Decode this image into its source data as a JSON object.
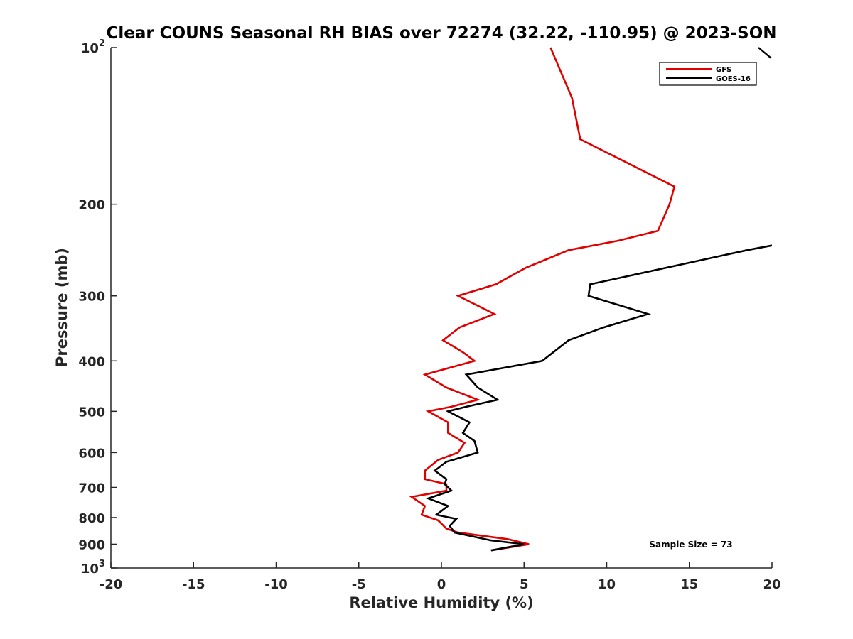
{
  "chart_data": {
    "type": "line",
    "title": "Clear COUNS Seasonal RH BIAS over 72274 (32.22, -110.95) @ 2023-SON",
    "xlabel": "Relative Humidity (%)",
    "ylabel": "Pressure (mb)",
    "xlim": [
      -20,
      20
    ],
    "ylim": [
      100,
      1000
    ],
    "y_scale": "log",
    "y_reversed": true,
    "grid": false,
    "legend_position": "top-right",
    "x_ticks": [
      "-20",
      "-15",
      "-10",
      "-5",
      "0",
      "5",
      "10",
      "15",
      "20"
    ],
    "y_ticks": [
      {
        "value": 100,
        "base": "10",
        "exp": "2"
      },
      {
        "value": 200,
        "base": "200",
        "exp": ""
      },
      {
        "value": 300,
        "base": "300",
        "exp": ""
      },
      {
        "value": 400,
        "base": "400",
        "exp": ""
      },
      {
        "value": 500,
        "base": "500",
        "exp": ""
      },
      {
        "value": 600,
        "base": "600",
        "exp": ""
      },
      {
        "value": 700,
        "base": "700",
        "exp": ""
      },
      {
        "value": 800,
        "base": "800",
        "exp": ""
      },
      {
        "value": 900,
        "base": "900",
        "exp": ""
      },
      {
        "value": 1000,
        "base": "10",
        "exp": "3"
      }
    ],
    "series": [
      {
        "name": "GFS",
        "color": "#e00000",
        "points": [
          {
            "x": 6.6,
            "y": 100
          },
          {
            "x": 7.9,
            "y": 125
          },
          {
            "x": 8.4,
            "y": 150
          },
          {
            "x": 14.1,
            "y": 185
          },
          {
            "x": 13.8,
            "y": 200
          },
          {
            "x": 13.1,
            "y": 225
          },
          {
            "x": 10.7,
            "y": 235
          },
          {
            "x": 7.7,
            "y": 245
          },
          {
            "x": 5.1,
            "y": 265
          },
          {
            "x": 3.3,
            "y": 285
          },
          {
            "x": 1.0,
            "y": 300
          },
          {
            "x": 3.2,
            "y": 325
          },
          {
            "x": 1.1,
            "y": 345
          },
          {
            "x": 0.1,
            "y": 365
          },
          {
            "x": 1.3,
            "y": 385
          },
          {
            "x": 2.0,
            "y": 400
          },
          {
            "x": -1.0,
            "y": 425
          },
          {
            "x": 0.3,
            "y": 450
          },
          {
            "x": 2.2,
            "y": 475
          },
          {
            "x": 0.6,
            "y": 490
          },
          {
            "x": -0.8,
            "y": 500
          },
          {
            "x": 0.4,
            "y": 525
          },
          {
            "x": 0.4,
            "y": 550
          },
          {
            "x": 1.4,
            "y": 575
          },
          {
            "x": 1.0,
            "y": 600
          },
          {
            "x": -0.2,
            "y": 620
          },
          {
            "x": -1.0,
            "y": 650
          },
          {
            "x": -1.0,
            "y": 675
          },
          {
            "x": 0.3,
            "y": 690
          },
          {
            "x": 0.3,
            "y": 710
          },
          {
            "x": -1.8,
            "y": 730
          },
          {
            "x": -1.0,
            "y": 760
          },
          {
            "x": -1.2,
            "y": 790
          },
          {
            "x": -0.2,
            "y": 810
          },
          {
            "x": 0.3,
            "y": 840
          },
          {
            "x": 1.0,
            "y": 855
          },
          {
            "x": 4.0,
            "y": 880
          },
          {
            "x": 5.3,
            "y": 900
          },
          {
            "x": 3.0,
            "y": 925
          }
        ]
      },
      {
        "name": "GOES-16",
        "color": "#000000",
        "points": [
          {
            "x": 20.0,
            "y": 240
          },
          {
            "x": 18.5,
            "y": 245
          },
          {
            "x": 9.0,
            "y": 285
          },
          {
            "x": 8.9,
            "y": 300
          },
          {
            "x": 12.5,
            "y": 325
          },
          {
            "x": 9.8,
            "y": 345
          },
          {
            "x": 7.7,
            "y": 365
          },
          {
            "x": 6.1,
            "y": 400
          },
          {
            "x": 1.5,
            "y": 425
          },
          {
            "x": 2.2,
            "y": 450
          },
          {
            "x": 3.4,
            "y": 475
          },
          {
            "x": 1.5,
            "y": 490
          },
          {
            "x": 0.4,
            "y": 500
          },
          {
            "x": 1.7,
            "y": 525
          },
          {
            "x": 1.3,
            "y": 550
          },
          {
            "x": 2.0,
            "y": 570
          },
          {
            "x": 2.2,
            "y": 600
          },
          {
            "x": 0.3,
            "y": 625
          },
          {
            "x": -0.4,
            "y": 650
          },
          {
            "x": 0.3,
            "y": 675
          },
          {
            "x": 0.2,
            "y": 690
          },
          {
            "x": 0.6,
            "y": 710
          },
          {
            "x": -0.8,
            "y": 735
          },
          {
            "x": 0.4,
            "y": 760
          },
          {
            "x": -0.3,
            "y": 790
          },
          {
            "x": 0.9,
            "y": 805
          },
          {
            "x": 0.5,
            "y": 830
          },
          {
            "x": 0.8,
            "y": 855
          },
          {
            "x": 3.0,
            "y": 885
          },
          {
            "x": 5.0,
            "y": 900
          },
          {
            "x": 3.0,
            "y": 925
          }
        ]
      }
    ],
    "annotations": [
      {
        "text": "Sample Size = 73",
        "position": "bottom-right"
      }
    ]
  }
}
